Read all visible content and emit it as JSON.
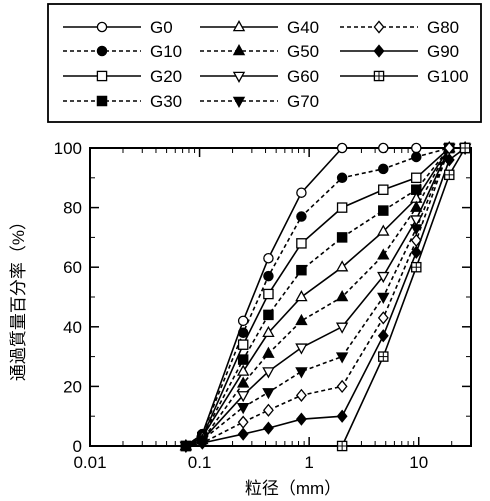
{
  "chart_data": {
    "type": "line",
    "title": "",
    "xlabel": "粒径（mm）",
    "ylabel": "通過質量百分率（%）",
    "x_scale": "log",
    "xlim": [
      0.01,
      30
    ],
    "ylim": [
      0,
      100
    ],
    "xtick_labels": [
      "0.01",
      "0.1",
      "1",
      "10"
    ],
    "ytick_labels": [
      "0",
      "20",
      "40",
      "60",
      "80",
      "100"
    ],
    "grid": false,
    "legend_position": "top",
    "x": [
      0.075,
      0.106,
      0.25,
      0.425,
      0.85,
      2.0,
      4.75,
      9.5,
      19.0,
      26.5
    ],
    "series": [
      {
        "name": "G0",
        "line": "solid",
        "marker": "circle-open",
        "values": [
          0,
          4,
          42,
          63,
          85,
          100,
          100,
          100,
          100,
          100
        ]
      },
      {
        "name": "G10",
        "line": "dashed",
        "marker": "circle-filled",
        "values": [
          0,
          4,
          38,
          57,
          77,
          90,
          93,
          97,
          100,
          100
        ]
      },
      {
        "name": "G20",
        "line": "solid",
        "marker": "square-open",
        "values": [
          0,
          3,
          34,
          51,
          68,
          80,
          86,
          90,
          100,
          100
        ]
      },
      {
        "name": "G30",
        "line": "dashed",
        "marker": "square-filled",
        "values": [
          0,
          3,
          29,
          44,
          59,
          70,
          79,
          86,
          100,
          100
        ]
      },
      {
        "name": "G40",
        "line": "solid",
        "marker": "triangle-open",
        "values": [
          0,
          3,
          25,
          38,
          50,
          60,
          72,
          83,
          100,
          100
        ]
      },
      {
        "name": "G50",
        "line": "dashed",
        "marker": "triangle-filled",
        "values": [
          0,
          2,
          21,
          31,
          42,
          50,
          64,
          80,
          100,
          100
        ]
      },
      {
        "name": "G60",
        "line": "solid",
        "marker": "triangle-down-open",
        "values": [
          0,
          2,
          17,
          25,
          33,
          40,
          57,
          76,
          100,
          100
        ]
      },
      {
        "name": "G70",
        "line": "dashed",
        "marker": "triangle-down-filled",
        "values": [
          0,
          2,
          13,
          18,
          25,
          30,
          50,
          73,
          100,
          100
        ]
      },
      {
        "name": "G80",
        "line": "dashed",
        "marker": "diamond-open",
        "values": [
          0,
          1,
          8,
          12,
          17,
          20,
          43,
          69,
          100,
          100
        ]
      },
      {
        "name": "G90",
        "line": "solid",
        "marker": "diamond-filled",
        "values": [
          0,
          1,
          4,
          6,
          9,
          10,
          37,
          65,
          96,
          100
        ]
      },
      {
        "name": "G100",
        "line": "solid",
        "marker": "square-plus",
        "values": [
          null,
          null,
          null,
          null,
          null,
          0,
          30,
          60,
          91,
          100
        ]
      }
    ]
  }
}
